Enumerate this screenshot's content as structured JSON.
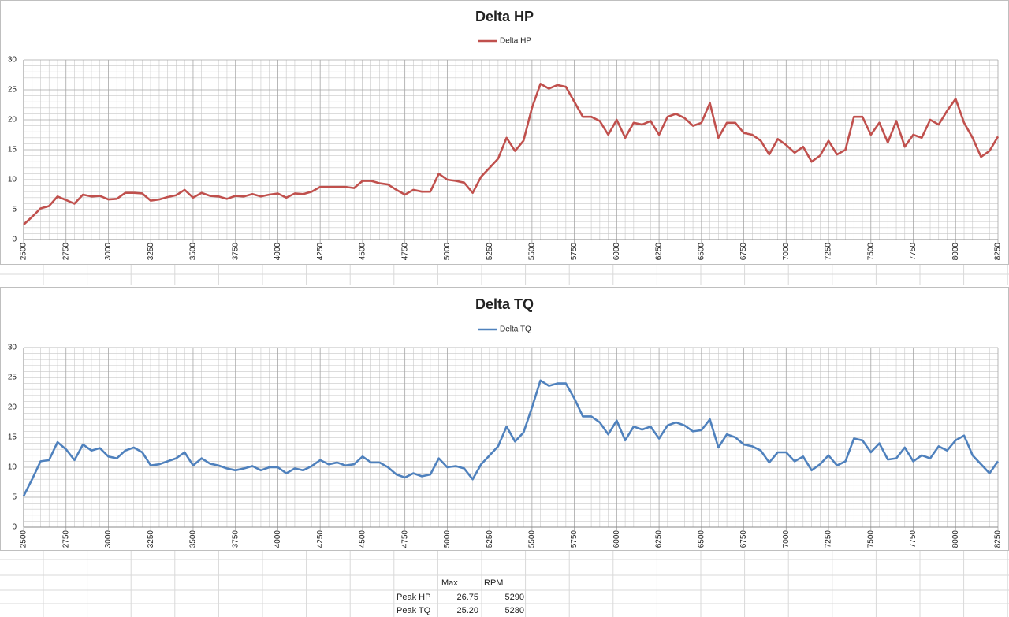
{
  "chart_data": [
    {
      "type": "line",
      "title": "Delta HP",
      "x": [
        2500,
        2550,
        2600,
        2650,
        2700,
        2750,
        2800,
        2850,
        2900,
        2950,
        3000,
        3050,
        3100,
        3150,
        3200,
        3250,
        3300,
        3350,
        3400,
        3450,
        3500,
        3550,
        3600,
        3650,
        3700,
        3750,
        3800,
        3850,
        3900,
        3950,
        4000,
        4050,
        4100,
        4150,
        4200,
        4250,
        4300,
        4350,
        4400,
        4450,
        4500,
        4550,
        4600,
        4650,
        4700,
        4750,
        4800,
        4850,
        4900,
        4950,
        5000,
        5050,
        5100,
        5150,
        5200,
        5250,
        5300,
        5350,
        5400,
        5450,
        5500,
        5550,
        5600,
        5650,
        5700,
        5750,
        5800,
        5850,
        5900,
        5950,
        6000,
        6050,
        6100,
        6150,
        6200,
        6250,
        6300,
        6350,
        6400,
        6450,
        6500,
        6550,
        6600,
        6650,
        6700,
        6750,
        6800,
        6850,
        6900,
        6950,
        7000,
        7050,
        7100,
        7150,
        7200,
        7250,
        7300,
        7350,
        7400,
        7450,
        7500,
        7550,
        7600,
        7650,
        7700,
        7750,
        7800,
        7850,
        7900,
        7950,
        8000,
        8050,
        8100,
        8150,
        8200,
        8250
      ],
      "series": [
        {
          "name": "Delta HP",
          "color": "#c0504d",
          "values": [
            2.5,
            3.8,
            5.2,
            5.6,
            7.2,
            6.6,
            6.0,
            7.5,
            7.2,
            7.3,
            6.7,
            6.8,
            7.8,
            7.8,
            7.7,
            6.5,
            6.7,
            7.1,
            7.4,
            8.3,
            7.0,
            7.8,
            7.3,
            7.2,
            6.8,
            7.3,
            7.2,
            7.6,
            7.2,
            7.5,
            7.7,
            7.0,
            7.7,
            7.6,
            8.0,
            8.8,
            8.8,
            8.8,
            8.8,
            8.6,
            9.8,
            9.8,
            9.4,
            9.2,
            8.3,
            7.5,
            8.3,
            8.0,
            8.0,
            11.0,
            10.0,
            9.8,
            9.5,
            7.8,
            10.5,
            12.0,
            13.5,
            17.0,
            14.8,
            16.5,
            22.0,
            26.0,
            25.2,
            25.8,
            25.5,
            23.0,
            20.5,
            20.5,
            19.8,
            17.5,
            20.0,
            17.0,
            19.5,
            19.2,
            19.8,
            17.5,
            20.5,
            21.0,
            20.3,
            19.0,
            19.5,
            22.8,
            17.0,
            19.5,
            19.5,
            17.8,
            17.5,
            16.5,
            14.2,
            16.8,
            15.8,
            14.5,
            15.5,
            13.0,
            14.0,
            16.5,
            14.2,
            15.0,
            20.5,
            20.5,
            17.5,
            19.5,
            16.2,
            19.8,
            15.5,
            17.5,
            17.0,
            20.0,
            19.2,
            21.5,
            23.5,
            19.5,
            17.0,
            13.8,
            14.8,
            17.2
          ]
        }
      ],
      "xlim": [
        2500,
        8250
      ],
      "xticks": [
        2500,
        2750,
        3000,
        3250,
        3500,
        3750,
        4000,
        4250,
        4500,
        4750,
        5000,
        5250,
        5500,
        5750,
        6000,
        6250,
        6500,
        6750,
        7000,
        7250,
        7500,
        7750,
        8000,
        8250
      ],
      "ylim": [
        0,
        30
      ],
      "yticks": [
        0,
        5,
        10,
        15,
        20,
        25,
        30
      ],
      "grid": true,
      "legend": "top"
    },
    {
      "type": "line",
      "title": "Delta TQ",
      "x": [
        2500,
        2550,
        2600,
        2650,
        2700,
        2750,
        2800,
        2850,
        2900,
        2950,
        3000,
        3050,
        3100,
        3150,
        3200,
        3250,
        3300,
        3350,
        3400,
        3450,
        3500,
        3550,
        3600,
        3650,
        3700,
        3750,
        3800,
        3850,
        3900,
        3950,
        4000,
        4050,
        4100,
        4150,
        4200,
        4250,
        4300,
        4350,
        4400,
        4450,
        4500,
        4550,
        4600,
        4650,
        4700,
        4750,
        4800,
        4850,
        4900,
        4950,
        5000,
        5050,
        5100,
        5150,
        5200,
        5250,
        5300,
        5350,
        5400,
        5450,
        5500,
        5550,
        5600,
        5650,
        5700,
        5750,
        5800,
        5850,
        5900,
        5950,
        6000,
        6050,
        6100,
        6150,
        6200,
        6250,
        6300,
        6350,
        6400,
        6450,
        6500,
        6550,
        6600,
        6650,
        6700,
        6750,
        6800,
        6850,
        6900,
        6950,
        7000,
        7050,
        7100,
        7150,
        7200,
        7250,
        7300,
        7350,
        7400,
        7450,
        7500,
        7550,
        7600,
        7650,
        7700,
        7750,
        7800,
        7850,
        7900,
        7950,
        8000,
        8050,
        8100,
        8150,
        8200,
        8250
      ],
      "series": [
        {
          "name": "Delta TQ",
          "color": "#4f81bd",
          "values": [
            5.2,
            8.0,
            11.0,
            11.2,
            14.2,
            13.0,
            11.2,
            13.8,
            12.8,
            13.2,
            11.8,
            11.5,
            12.8,
            13.3,
            12.5,
            10.3,
            10.5,
            11.0,
            11.5,
            12.5,
            10.3,
            11.5,
            10.6,
            10.3,
            9.8,
            9.5,
            9.8,
            10.2,
            9.5,
            10.0,
            10.0,
            9.0,
            9.8,
            9.5,
            10.2,
            11.2,
            10.5,
            10.8,
            10.3,
            10.5,
            11.8,
            10.8,
            10.8,
            10.0,
            8.8,
            8.3,
            9.0,
            8.5,
            8.8,
            11.5,
            10.0,
            10.2,
            9.8,
            8.0,
            10.5,
            12.0,
            13.5,
            16.8,
            14.3,
            15.8,
            20.0,
            24.5,
            23.6,
            24.0,
            24.0,
            21.5,
            18.5,
            18.5,
            17.5,
            15.5,
            17.8,
            14.5,
            16.8,
            16.3,
            16.8,
            14.8,
            17.0,
            17.5,
            17.0,
            16.0,
            16.2,
            18.0,
            13.3,
            15.5,
            15.0,
            13.8,
            13.5,
            12.8,
            10.8,
            12.5,
            12.5,
            11.0,
            11.8,
            9.5,
            10.5,
            12.0,
            10.3,
            11.0,
            14.8,
            14.5,
            12.5,
            14.0,
            11.3,
            11.5,
            13.3,
            11.0,
            12.0,
            11.5,
            13.5,
            12.8,
            14.5,
            15.3,
            12.0,
            10.5,
            9.0,
            11.0
          ]
        }
      ],
      "xlim": [
        2500,
        8250
      ],
      "xticks": [
        2500,
        2750,
        3000,
        3250,
        3500,
        3750,
        4000,
        4250,
        4500,
        4750,
        5000,
        5250,
        5500,
        5750,
        6000,
        6250,
        6500,
        6750,
        7000,
        7250,
        7500,
        7750,
        8000,
        8250
      ],
      "ylim": [
        0,
        30
      ],
      "yticks": [
        0,
        5,
        10,
        15,
        20,
        25,
        30
      ],
      "grid": true,
      "legend": "top"
    }
  ],
  "table": {
    "header": [
      "Max",
      "RPM"
    ],
    "rows": [
      [
        "Peak HP",
        "26.75",
        "5290"
      ],
      [
        "Peak TQ",
        "25.20",
        "5280"
      ]
    ]
  }
}
